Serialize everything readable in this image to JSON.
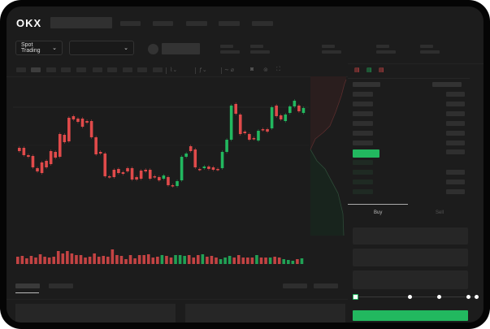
{
  "header": {
    "logo": "OKX"
  },
  "toolbar": {
    "market_select": "Spot Trading",
    "pair_select": ""
  },
  "chart_tools": {
    "icons": [
      "candle-type-icon",
      "indicator-icon",
      "draw-icon",
      "camera-icon",
      "settings-icon",
      "fullscreen-icon"
    ]
  },
  "orderbook": {
    "view_icons": [
      "orderbook-both-icon",
      "orderbook-buy-icon",
      "orderbook-sell-icon"
    ]
  },
  "trade": {
    "buy_tab": "Buy",
    "sell_tab": "Sell",
    "slider_percent": 0,
    "slider_stops": [
      0,
      25,
      50,
      75,
      100
    ]
  },
  "colors": {
    "up": "#22b85f",
    "down": "#e04a4a",
    "bg": "#1c1c1c",
    "accent": "#22b85f"
  },
  "chart_data": {
    "type": "candlestick",
    "candles": [
      [
        68,
        64
      ],
      [
        68,
        59
      ],
      [
        59,
        57
      ],
      [
        58,
        44
      ],
      [
        43,
        39
      ],
      [
        50,
        37
      ],
      [
        52,
        44
      ],
      [
        64,
        48
      ],
      [
        63,
        56
      ],
      [
        85,
        57
      ],
      [
        84,
        75
      ],
      [
        105,
        76
      ],
      [
        107,
        103
      ],
      [
        104,
        100
      ],
      [
        104,
        94
      ],
      [
        101,
        99
      ],
      [
        101,
        81
      ],
      [
        81,
        60
      ],
      [
        63,
        61
      ],
      [
        61,
        33
      ],
      [
        33,
        32
      ],
      [
        41,
        32
      ],
      [
        42,
        37
      ],
      [
        38,
        36
      ],
      [
        43,
        39
      ],
      [
        43,
        29
      ],
      [
        32,
        29
      ],
      [
        40,
        30
      ],
      [
        41,
        39
      ],
      [
        41,
        30
      ],
      [
        33,
        32
      ],
      [
        32,
        28
      ],
      [
        30,
        34
      ],
      [
        32,
        22
      ],
      [
        22,
        21
      ],
      [
        21,
        27
      ],
      [
        28,
        57
      ],
      [
        57,
        61
      ],
      [
        70,
        64
      ],
      [
        66,
        44
      ],
      [
        42,
        41
      ],
      [
        43,
        45
      ],
      [
        45,
        42
      ],
      [
        44,
        41
      ],
      [
        42,
        41
      ],
      [
        43,
        63
      ],
      [
        63,
        78
      ],
      [
        78,
        120
      ],
      [
        122,
        110
      ],
      [
        109,
        85
      ],
      [
        88,
        86
      ],
      [
        85,
        78
      ],
      [
        80,
        79
      ],
      [
        77,
        89
      ],
      [
        91,
        90
      ],
      [
        91,
        88
      ],
      [
        92,
        118
      ],
      [
        120,
        107
      ],
      [
        108,
        103
      ],
      [
        101,
        109
      ],
      [
        111,
        119
      ],
      [
        119,
        126
      ],
      [
        120,
        113
      ],
      [
        111,
        117
      ]
    ],
    "volume": [
      9,
      10,
      7,
      10,
      8,
      12,
      9,
      8,
      9,
      16,
      13,
      16,
      13,
      11,
      11,
      8,
      9,
      13,
      9,
      10,
      9,
      18,
      11,
      10,
      6,
      11,
      7,
      11,
      11,
      12,
      8,
      9,
      11,
      10,
      8,
      11,
      11,
      10,
      11,
      8,
      11,
      12,
      9,
      10,
      8,
      6,
      8,
      10,
      8,
      11,
      8,
      8,
      8,
      11,
      8,
      8,
      8,
      9,
      8,
      6,
      5,
      4,
      6,
      7
    ]
  }
}
